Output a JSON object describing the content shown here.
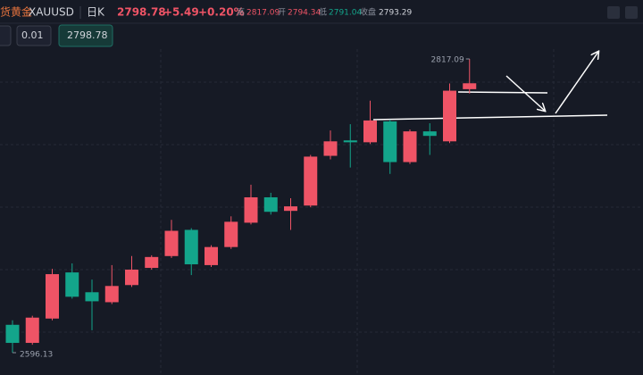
{
  "header": {
    "name": "货黄金",
    "symbol": "XAUUSD",
    "period": "日K",
    "price": "2798.78",
    "change": "+5.49",
    "change_pct": "+0.20%",
    "high_label": "高",
    "high": "2817.09",
    "open_label": "开",
    "open": "2794.34",
    "low_label": "低",
    "low": "2791.04",
    "close_label": "收盘",
    "close": "2793.29"
  },
  "toolbar": {
    "lot": "0.01",
    "price": "2798.78"
  },
  "chart_data": {
    "type": "candlestick",
    "up_color": "#ef5466",
    "down_color": "#13a58b",
    "open": [
      2617.1,
      2603.5,
      2621.8,
      2656.5,
      2641.6,
      2634.1,
      2647,
      2659.9,
      2668.8,
      2688.5,
      2662,
      2675.6,
      2693.9,
      2713,
      2702.8,
      2706.8,
      2744.2,
      2755.8,
      2754.4,
      2770.1,
      2739.5,
      2762.6,
      2755.1,
      2794.34
    ],
    "high": [
      2620.5,
      2623.9,
      2659.2,
      2663.3,
      2651.1,
      2662,
      2668.8,
      2669.4,
      2696,
      2689.8,
      2677,
      2698.7,
      2722.5,
      2716.4,
      2712.3,
      2744.9,
      2763.3,
      2768,
      2785.7,
      2771.4,
      2764,
      2768.7,
      2798.6,
      2817.09
    ],
    "low": [
      2596.13,
      2602.1,
      2620.5,
      2636.8,
      2613,
      2632.7,
      2645.6,
      2658.6,
      2667.4,
      2654.5,
      2660.6,
      2674.2,
      2692.6,
      2700,
      2688.5,
      2705.5,
      2741.5,
      2735.4,
      2753.1,
      2730.6,
      2738.1,
      2744.9,
      2753.8,
      2791.04
    ],
    "close": [
      2603.5,
      2622.5,
      2655.2,
      2638.2,
      2634.8,
      2646.3,
      2658.6,
      2668.1,
      2687.8,
      2662.6,
      2675.6,
      2694.6,
      2713,
      2702.1,
      2706.2,
      2743.6,
      2755.1,
      2754.4,
      2770.8,
      2739.5,
      2762.6,
      2759.2,
      2793.2,
      2798.78
    ]
  }
}
